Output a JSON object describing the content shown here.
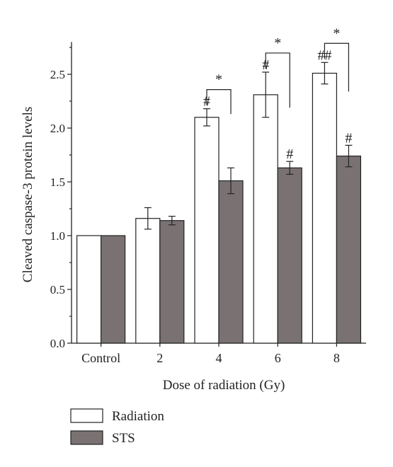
{
  "chart_data": {
    "type": "bar",
    "xlabel": "Dose of radiation (Gy)",
    "ylabel": "Cleaved caspase-3 protein levels",
    "ylim": [
      0,
      2.8
    ],
    "yticks": [
      "0.0",
      "0.5",
      "1.0",
      "1.5",
      "2.0",
      "2.5"
    ],
    "categories": [
      "Control",
      "2",
      "4",
      "6",
      "8"
    ],
    "series": [
      {
        "name": "Radiation",
        "color": "#ffffff",
        "values": [
          1.0,
          1.16,
          2.1,
          2.31,
          2.51
        ],
        "errors": [
          0,
          0.1,
          0.08,
          0.21,
          0.1
        ],
        "markers": [
          "",
          "",
          "#",
          "#",
          "##"
        ]
      },
      {
        "name": "STS",
        "color": "#7a7272",
        "values": [
          1.0,
          1.14,
          1.51,
          1.63,
          1.74
        ],
        "errors": [
          0,
          0.04,
          0.12,
          0.06,
          0.1
        ],
        "markers": [
          "",
          "",
          "",
          "#",
          "#"
        ]
      }
    ],
    "significance": [
      {
        "category": "4",
        "label": "*"
      },
      {
        "category": "6",
        "label": "*"
      },
      {
        "category": "8",
        "label": "*"
      }
    ],
    "legend_position": "bottom-left",
    "grid": false
  }
}
